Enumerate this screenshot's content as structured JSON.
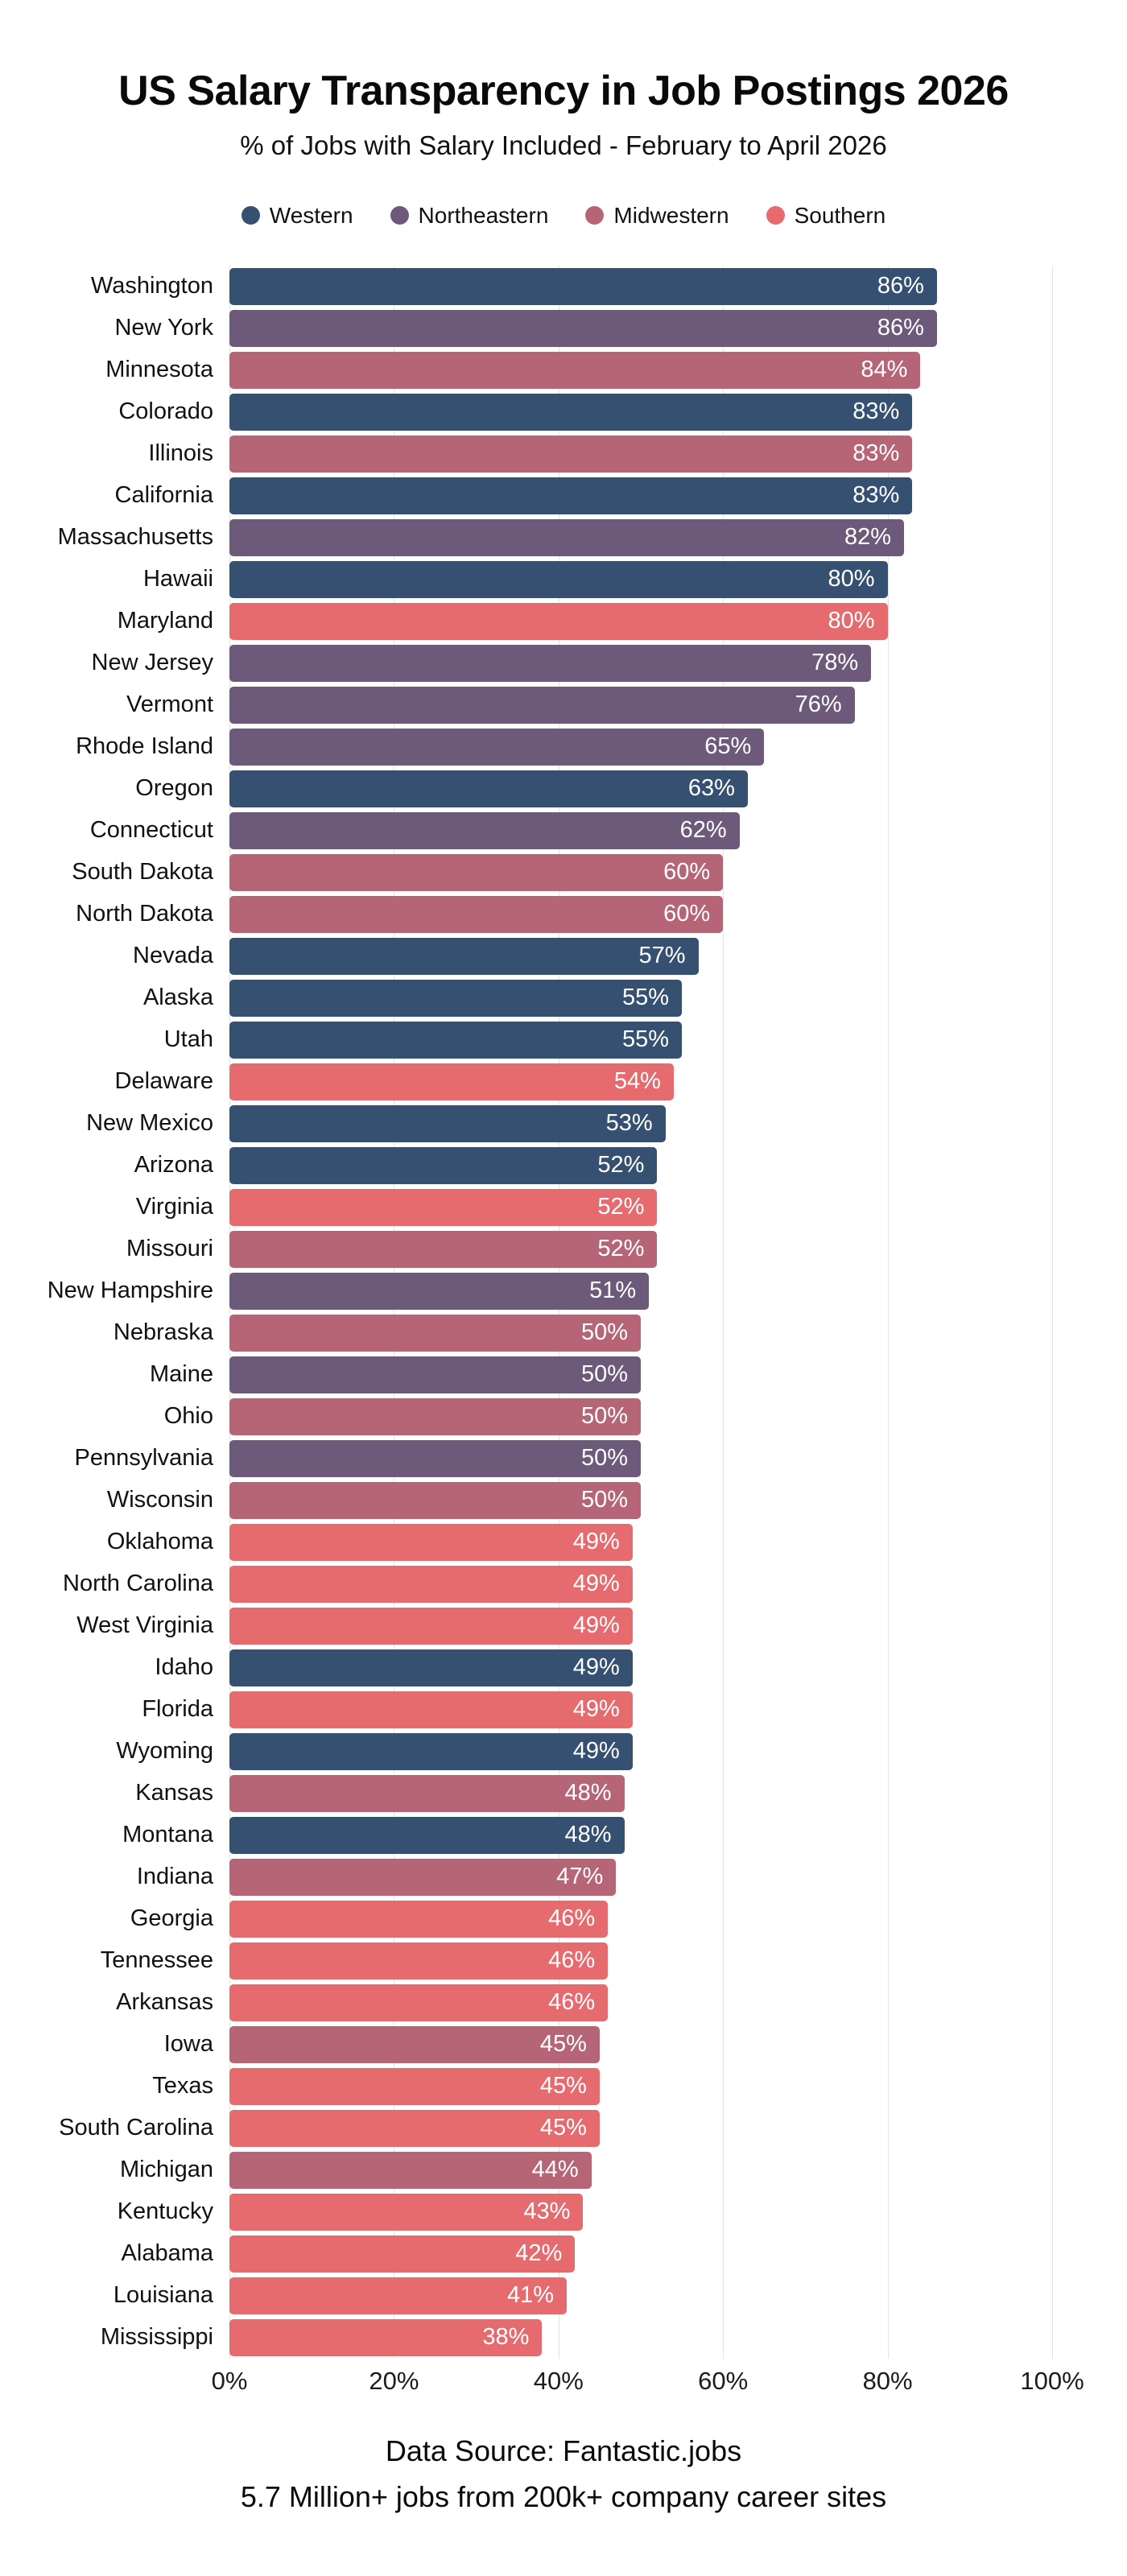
{
  "title": "US Salary Transparency in Job Postings 2026",
  "subtitle": "% of Jobs with Salary Included - February to April 2026",
  "footer": {
    "line1": "Data Source: Fantastic.jobs",
    "line2": "5.7 Million+ jobs from 200k+ company career sites"
  },
  "chart_data": {
    "type": "bar",
    "orientation": "horizontal",
    "title": "US Salary Transparency in Job Postings 2026",
    "subtitle": "% of Jobs with Salary Included - February to April 2026",
    "xlabel": "",
    "ylabel": "",
    "xlim": [
      0,
      100
    ],
    "x_tick_values": [
      0,
      20,
      40,
      60,
      80,
      100
    ],
    "x_tick_labels": [
      "0%",
      "20%",
      "40%",
      "60%",
      "80%",
      "100%"
    ],
    "grid": "vertical-light",
    "legend_position": "top",
    "value_suffix": "%",
    "regions": [
      {
        "name": "Western",
        "color": "#355070"
      },
      {
        "name": "Northeastern",
        "color": "#6d597a"
      },
      {
        "name": "Midwestern",
        "color": "#b56576"
      },
      {
        "name": "Southern",
        "color": "#e56b6f"
      }
    ],
    "states": [
      {
        "name": "Washington",
        "value": 86,
        "region": "Western"
      },
      {
        "name": "New York",
        "value": 86,
        "region": "Northeastern"
      },
      {
        "name": "Minnesota",
        "value": 84,
        "region": "Midwestern"
      },
      {
        "name": "Colorado",
        "value": 83,
        "region": "Western"
      },
      {
        "name": "Illinois",
        "value": 83,
        "region": "Midwestern"
      },
      {
        "name": "California",
        "value": 83,
        "region": "Western"
      },
      {
        "name": "Massachusetts",
        "value": 82,
        "region": "Northeastern"
      },
      {
        "name": "Hawaii",
        "value": 80,
        "region": "Western"
      },
      {
        "name": "Maryland",
        "value": 80,
        "region": "Southern"
      },
      {
        "name": "New Jersey",
        "value": 78,
        "region": "Northeastern"
      },
      {
        "name": "Vermont",
        "value": 76,
        "region": "Northeastern"
      },
      {
        "name": "Rhode Island",
        "value": 65,
        "region": "Northeastern"
      },
      {
        "name": "Oregon",
        "value": 63,
        "region": "Western"
      },
      {
        "name": "Connecticut",
        "value": 62,
        "region": "Northeastern"
      },
      {
        "name": "South Dakota",
        "value": 60,
        "region": "Midwestern"
      },
      {
        "name": "North Dakota",
        "value": 60,
        "region": "Midwestern"
      },
      {
        "name": "Nevada",
        "value": 57,
        "region": "Western"
      },
      {
        "name": "Alaska",
        "value": 55,
        "region": "Western"
      },
      {
        "name": "Utah",
        "value": 55,
        "region": "Western"
      },
      {
        "name": "Delaware",
        "value": 54,
        "region": "Southern"
      },
      {
        "name": "New Mexico",
        "value": 53,
        "region": "Western"
      },
      {
        "name": "Arizona",
        "value": 52,
        "region": "Western"
      },
      {
        "name": "Virginia",
        "value": 52,
        "region": "Southern"
      },
      {
        "name": "Missouri",
        "value": 52,
        "region": "Midwestern"
      },
      {
        "name": "New Hampshire",
        "value": 51,
        "region": "Northeastern"
      },
      {
        "name": "Nebraska",
        "value": 50,
        "region": "Midwestern"
      },
      {
        "name": "Maine",
        "value": 50,
        "region": "Northeastern"
      },
      {
        "name": "Ohio",
        "value": 50,
        "region": "Midwestern"
      },
      {
        "name": "Pennsylvania",
        "value": 50,
        "region": "Northeastern"
      },
      {
        "name": "Wisconsin",
        "value": 50,
        "region": "Midwestern"
      },
      {
        "name": "Oklahoma",
        "value": 49,
        "region": "Southern"
      },
      {
        "name": "North Carolina",
        "value": 49,
        "region": "Southern"
      },
      {
        "name": "West Virginia",
        "value": 49,
        "region": "Southern"
      },
      {
        "name": "Idaho",
        "value": 49,
        "region": "Western"
      },
      {
        "name": "Florida",
        "value": 49,
        "region": "Southern"
      },
      {
        "name": "Wyoming",
        "value": 49,
        "region": "Western"
      },
      {
        "name": "Kansas",
        "value": 48,
        "region": "Midwestern"
      },
      {
        "name": "Montana",
        "value": 48,
        "region": "Western"
      },
      {
        "name": "Indiana",
        "value": 47,
        "region": "Midwestern"
      },
      {
        "name": "Georgia",
        "value": 46,
        "region": "Southern"
      },
      {
        "name": "Tennessee",
        "value": 46,
        "region": "Southern"
      },
      {
        "name": "Arkansas",
        "value": 46,
        "region": "Southern"
      },
      {
        "name": "Iowa",
        "value": 45,
        "region": "Midwestern"
      },
      {
        "name": "Texas",
        "value": 45,
        "region": "Southern"
      },
      {
        "name": "South Carolina",
        "value": 45,
        "region": "Southern"
      },
      {
        "name": "Michigan",
        "value": 44,
        "region": "Midwestern"
      },
      {
        "name": "Kentucky",
        "value": 43,
        "region": "Southern"
      },
      {
        "name": "Alabama",
        "value": 42,
        "region": "Southern"
      },
      {
        "name": "Louisiana",
        "value": 41,
        "region": "Southern"
      },
      {
        "name": "Mississippi",
        "value": 38,
        "region": "Southern"
      }
    ]
  }
}
